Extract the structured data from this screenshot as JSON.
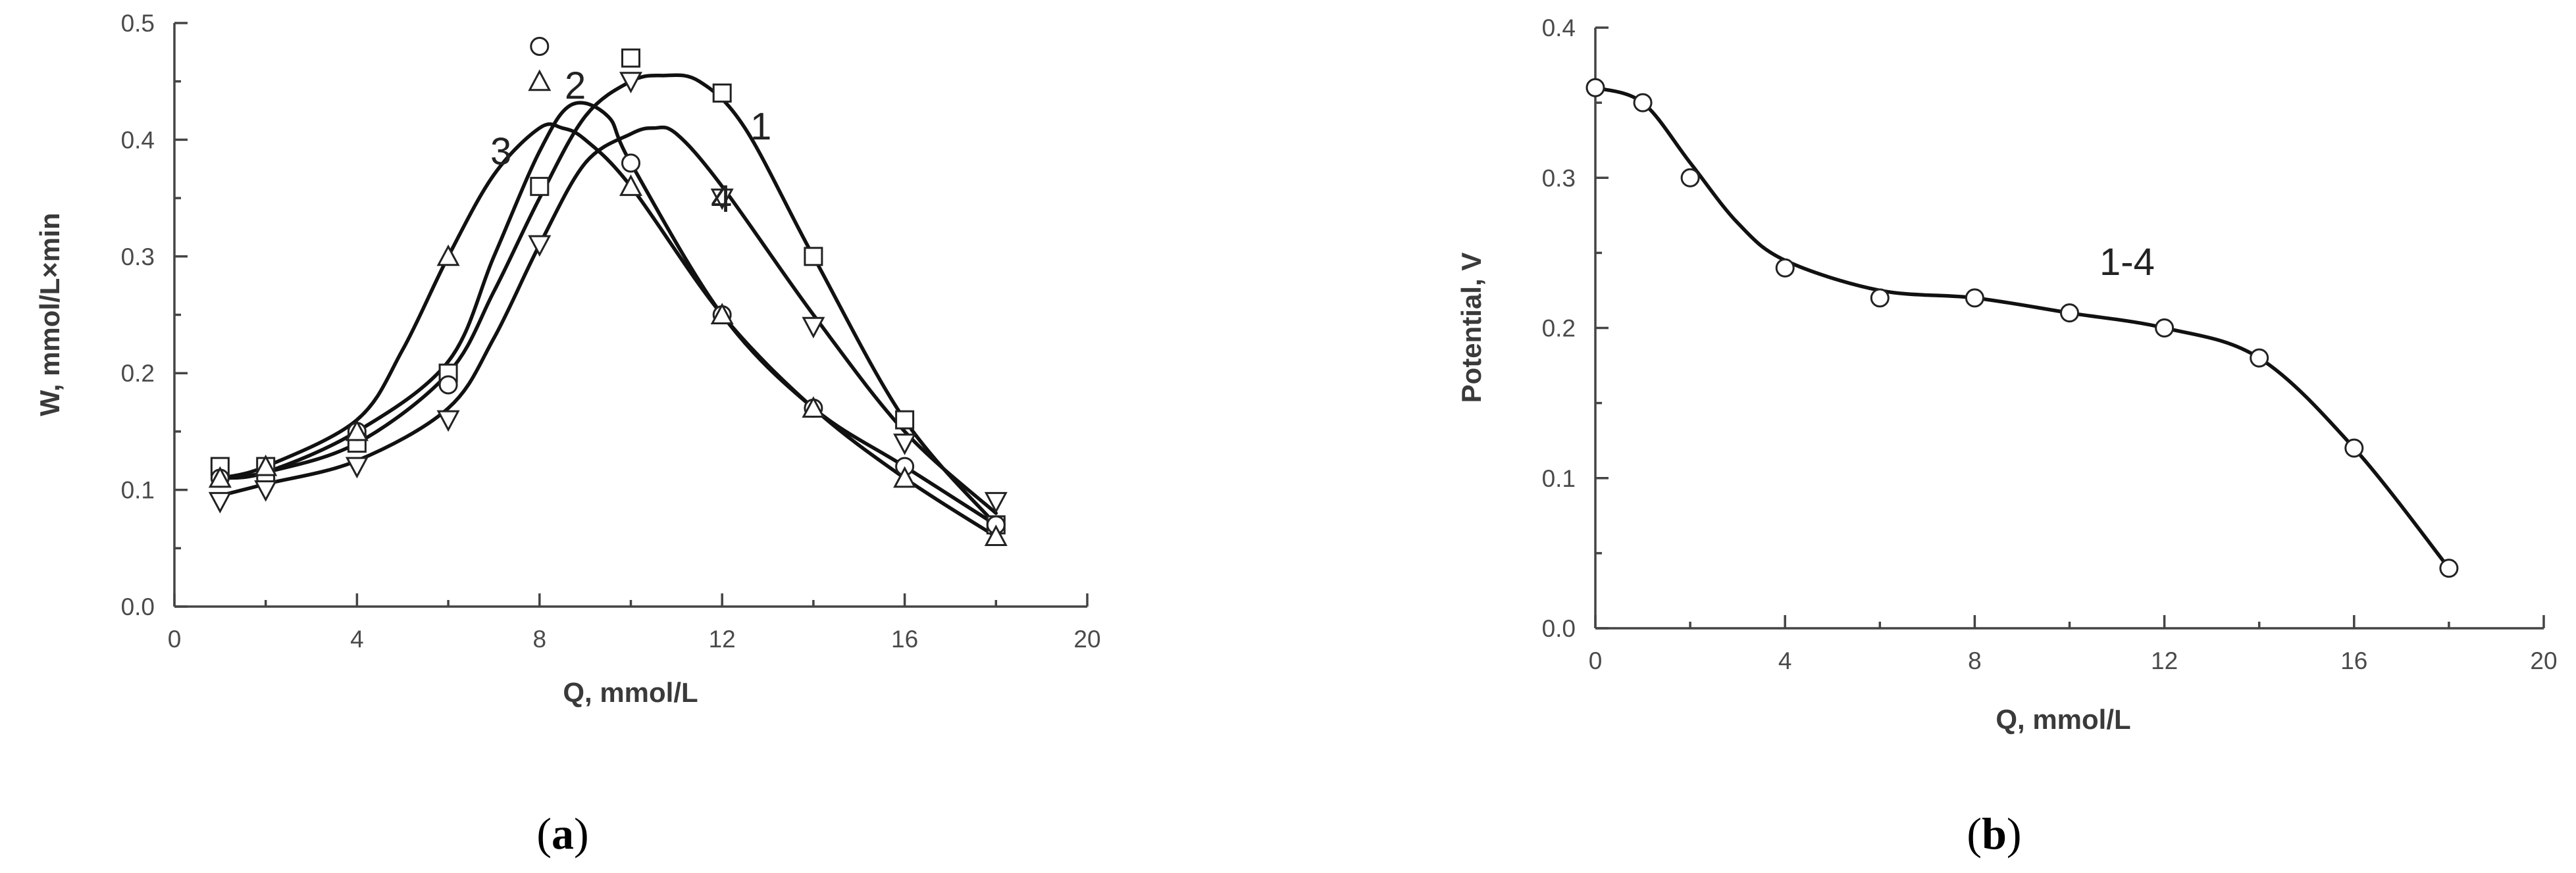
{
  "chart_data": [
    {
      "type": "line",
      "panel_label": "a",
      "xlabel": "Q, mmol/L",
      "ylabel": "W, mmol/L×min",
      "xlim": [
        0,
        20
      ],
      "ylim": [
        0.0,
        0.5
      ],
      "x_ticks": [
        "0",
        "4",
        "8",
        "12",
        "16",
        "20"
      ],
      "y_ticks": [
        "0.0",
        "0.1",
        "0.2",
        "0.3",
        "0.4",
        "0.5"
      ],
      "series": [
        {
          "name": "1",
          "marker": "square",
          "x": [
            1,
            2,
            4,
            6,
            8,
            10,
            12,
            14,
            16,
            18
          ],
          "y": [
            0.12,
            0.12,
            0.14,
            0.2,
            0.36,
            0.47,
            0.44,
            0.3,
            0.16,
            0.07
          ]
        },
        {
          "name": "2",
          "marker": "circle",
          "x": [
            1,
            2,
            4,
            6,
            8,
            10,
            12,
            14,
            16,
            18
          ],
          "y": [
            0.11,
            0.11,
            0.15,
            0.19,
            0.48,
            0.38,
            0.25,
            0.17,
            0.12,
            0.07
          ]
        },
        {
          "name": "3",
          "marker": "triangle-up",
          "x": [
            1,
            2,
            4,
            6,
            8,
            10,
            12,
            14,
            16,
            18
          ],
          "y": [
            0.11,
            0.12,
            0.15,
            0.3,
            0.45,
            0.36,
            0.25,
            0.17,
            0.11,
            0.06
          ]
        },
        {
          "name": "4",
          "marker": "triangle-down",
          "x": [
            1,
            2,
            4,
            6,
            8,
            10,
            12,
            14,
            16,
            18
          ],
          "y": [
            0.09,
            0.1,
            0.12,
            0.16,
            0.31,
            0.45,
            0.35,
            0.24,
            0.14,
            0.09
          ]
        }
      ]
    },
    {
      "type": "line",
      "panel_label": "b",
      "xlabel": "Q, mmol/L",
      "ylabel": "Potential, V",
      "xlim": [
        0,
        20
      ],
      "ylim": [
        0.0,
        0.4
      ],
      "x_ticks": [
        "0",
        "4",
        "8",
        "12",
        "16",
        "20"
      ],
      "y_ticks": [
        "0.0",
        "0.1",
        "0.2",
        "0.3",
        "0.4"
      ],
      "annotation": "1-4",
      "series": [
        {
          "marker": "circle",
          "x": [
            0,
            1,
            2,
            4,
            6,
            8,
            10,
            12,
            14,
            16,
            18
          ],
          "y": [
            0.36,
            0.35,
            0.3,
            0.24,
            0.22,
            0.22,
            0.21,
            0.2,
            0.18,
            0.12,
            0.04
          ]
        }
      ]
    }
  ]
}
